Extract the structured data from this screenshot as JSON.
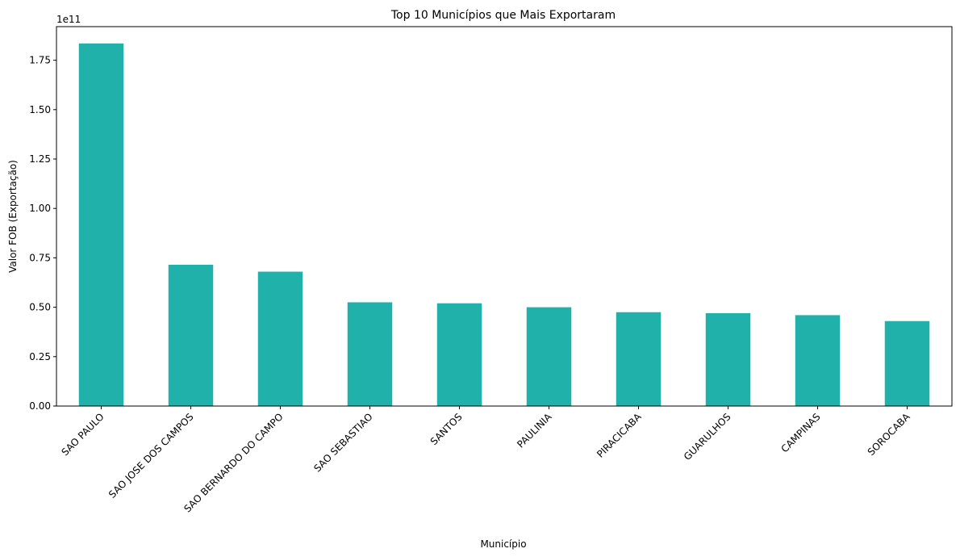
{
  "chart_data": {
    "type": "bar",
    "title": "Top 10 Municípios que Mais Exportaram",
    "xlabel": "Município",
    "ylabel": "Valor FOB (Exportação)",
    "y_offset_label": "1e11",
    "categories": [
      "SAO PAULO",
      "SAO JOSE DOS CAMPOS",
      "SAO BERNARDO DO CAMPO",
      "SAO SEBASTIAO",
      "SANTOS",
      "PAULINIA",
      "PIRACICABA",
      "GUARULHOS",
      "CAMPINAS",
      "SOROCABA"
    ],
    "values": [
      183500000000,
      71500000000,
      68000000000,
      52500000000,
      52000000000,
      50000000000,
      47500000000,
      47000000000,
      46000000000,
      43000000000
    ],
    "ylim": [
      0,
      192000000000
    ],
    "yticks": [
      0,
      25000000000,
      50000000000,
      75000000000,
      100000000000,
      125000000000,
      150000000000,
      175000000000
    ],
    "ytick_labels": [
      "0.00",
      "0.25",
      "0.50",
      "0.75",
      "1.00",
      "1.25",
      "1.50",
      "1.75"
    ],
    "bar_color": "#20b2aa",
    "grid": false,
    "legend": "none"
  }
}
